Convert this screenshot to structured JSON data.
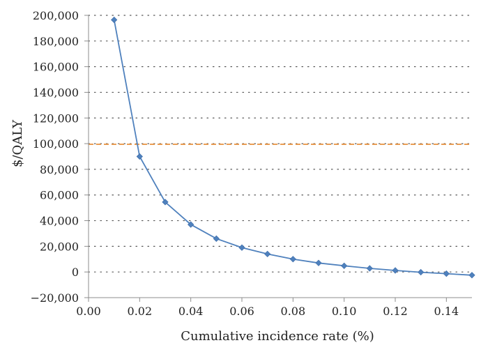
{
  "chart_data": {
    "type": "line",
    "title": "",
    "xlabel": "Cumulative incidence rate (%)",
    "ylabel": "$/QALY",
    "xlim": [
      0.0,
      0.15
    ],
    "ylim": [
      -20000,
      200000
    ],
    "x_ticks": [
      0.0,
      0.02,
      0.04,
      0.06,
      0.08,
      0.1,
      0.12,
      0.14
    ],
    "x_tick_labels": [
      "0.00",
      "0.02",
      "0.04",
      "0.06",
      "0.08",
      "0.10",
      "0.12",
      "0.14"
    ],
    "y_ticks": [
      -20000,
      0,
      20000,
      40000,
      60000,
      80000,
      100000,
      120000,
      140000,
      160000,
      180000,
      200000
    ],
    "y_tick_labels": [
      "−20,000",
      "0",
      "20,000",
      "40,000",
      "60,000",
      "80,000",
      "100,000",
      "120,000",
      "140,000",
      "160,000",
      "180,000",
      "200,000"
    ],
    "grid": "horizontal dotted",
    "series": [
      {
        "marker": "diamond",
        "color": "#4f81bd",
        "x": [
          0.01,
          0.02,
          0.03,
          0.04,
          0.05,
          0.06,
          0.07,
          0.08,
          0.09,
          0.1,
          0.11,
          0.12,
          0.13,
          0.14,
          0.15
        ],
        "y": [
          196500,
          90000,
          54500,
          37000,
          26000,
          19000,
          14000,
          10000,
          7000,
          4800,
          2800,
          1200,
          -200,
          -1300,
          -2500
        ]
      }
    ],
    "reference_line": {
      "y": 99500,
      "style": "dashed",
      "color": "#e8903c"
    }
  }
}
